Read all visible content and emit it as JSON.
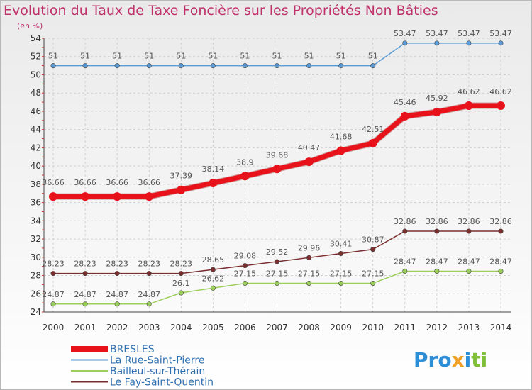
{
  "title": "Evolution du Taux de Taxe Foncière sur les Propriétés Non Bâties",
  "unit_label": "(en %)",
  "logo_text": "Prox iti",
  "chart_data": {
    "type": "line",
    "title": "Evolution du Taux de Taxe Foncière sur les Propriétés Non Bâties",
    "ylabel": "(en %)",
    "xlabel": "",
    "x": [
      "2000",
      "2001",
      "2002",
      "2003",
      "2004",
      "2005",
      "2006",
      "2007",
      "2008",
      "2009",
      "2010",
      "2011",
      "2012",
      "2013",
      "2014"
    ],
    "ylim": [
      24,
      54
    ],
    "yticks": [
      24,
      26,
      28,
      30,
      32,
      34,
      36,
      38,
      40,
      42,
      44,
      46,
      48,
      50,
      52,
      54
    ],
    "grid": true,
    "legend_position": "bottom-left",
    "series": [
      {
        "name": "BRESLES",
        "color": "#e8121b",
        "width": 7,
        "values": [
          36.66,
          36.66,
          36.66,
          36.66,
          37.39,
          38.14,
          38.9,
          39.68,
          40.47,
          41.68,
          42.51,
          45.46,
          45.92,
          46.62,
          46.62
        ]
      },
      {
        "name": "La Rue-Saint-Pierre",
        "color": "#5b9bd5",
        "width": 1.5,
        "values": [
          51,
          51,
          51,
          51,
          51,
          51,
          51,
          51,
          51,
          51,
          51,
          53.47,
          53.47,
          53.47,
          53.47
        ]
      },
      {
        "name": "Bailleul-sur-Thérain",
        "color": "#9ccf5a",
        "width": 1.5,
        "values": [
          24.87,
          24.87,
          24.87,
          24.87,
          26.1,
          26.62,
          27.15,
          27.15,
          27.15,
          27.15,
          27.15,
          28.47,
          28.47,
          28.47,
          28.47
        ]
      },
      {
        "name": "Le Fay-Saint-Quentin",
        "color": "#7a2e2e",
        "width": 1.5,
        "values": [
          28.23,
          28.23,
          28.23,
          28.23,
          28.23,
          28.65,
          29.08,
          29.52,
          29.96,
          30.41,
          30.87,
          32.86,
          32.86,
          32.86,
          32.86
        ]
      }
    ]
  }
}
